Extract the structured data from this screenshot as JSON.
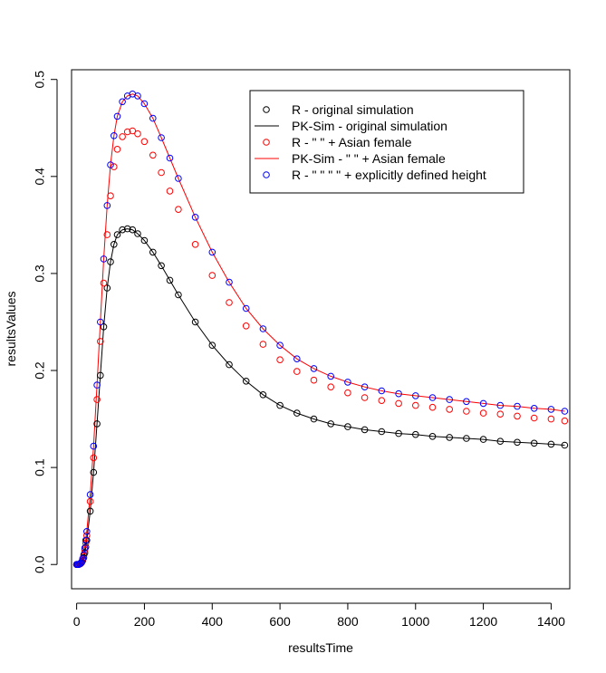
{
  "chart_data": {
    "type": "scatter",
    "title": "",
    "xlabel": "resultsTime",
    "ylabel": "resultsValues",
    "xlim": [
      -15,
      1455
    ],
    "ylim": [
      -0.025,
      0.51
    ],
    "x_ticks": [
      0,
      200,
      400,
      600,
      800,
      1000,
      1200,
      1400
    ],
    "y_ticks": [
      0.0,
      0.1,
      0.2,
      0.3,
      0.4,
      0.5
    ],
    "y_tick_labels": [
      "0.0",
      "0.1",
      "0.2",
      "0.3",
      "0.4",
      "0.5"
    ],
    "grid": false,
    "legend_position": "top-right",
    "legend": [
      {
        "label": "R - original simulation",
        "symbol": "circle",
        "color": "#000000"
      },
      {
        "label": "PK-Sim - original simulation",
        "symbol": "line",
        "color": "#000000"
      },
      {
        "label": "R - \" \" + Asian female",
        "symbol": "circle",
        "color": "#ff0000"
      },
      {
        "label": "PK-Sim - \" \" + Asian female",
        "symbol": "line",
        "color": "#ff0000"
      },
      {
        "label": "R - \" \" \" \" + explicitly defined height",
        "symbol": "circle",
        "color": "#0000ff"
      }
    ],
    "x": [
      0,
      3,
      6,
      9,
      12,
      15,
      18,
      21,
      24,
      27,
      30,
      40,
      50,
      60,
      70,
      80,
      90,
      100,
      110,
      120,
      135,
      150,
      165,
      180,
      200,
      225,
      250,
      275,
      300,
      350,
      400,
      450,
      500,
      550,
      600,
      650,
      700,
      750,
      800,
      850,
      900,
      950,
      1000,
      1050,
      1100,
      1150,
      1200,
      1250,
      1300,
      1350,
      1400,
      1440
    ],
    "series": [
      {
        "name": "R - original simulation",
        "mark": "circle",
        "color": "#000000",
        "values": [
          0.0,
          0.0,
          0.0,
          0.0005,
          0.001,
          0.002,
          0.004,
          0.007,
          0.012,
          0.018,
          0.025,
          0.055,
          0.095,
          0.145,
          0.195,
          0.245,
          0.285,
          0.312,
          0.33,
          0.34,
          0.345,
          0.346,
          0.345,
          0.341,
          0.334,
          0.322,
          0.308,
          0.293,
          0.278,
          0.25,
          0.226,
          0.206,
          0.189,
          0.175,
          0.164,
          0.156,
          0.15,
          0.145,
          0.142,
          0.139,
          0.137,
          0.135,
          0.134,
          0.132,
          0.131,
          0.13,
          0.129,
          0.127,
          0.126,
          0.125,
          0.124,
          0.123
        ]
      },
      {
        "name": "PK-Sim - original simulation",
        "mark": "line",
        "color": "#000000",
        "values": [
          0.0,
          0.0,
          0.0,
          0.0005,
          0.001,
          0.002,
          0.004,
          0.007,
          0.012,
          0.018,
          0.025,
          0.055,
          0.095,
          0.145,
          0.195,
          0.245,
          0.285,
          0.312,
          0.33,
          0.34,
          0.345,
          0.346,
          0.345,
          0.341,
          0.334,
          0.322,
          0.308,
          0.293,
          0.278,
          0.25,
          0.226,
          0.206,
          0.189,
          0.175,
          0.164,
          0.156,
          0.15,
          0.145,
          0.142,
          0.139,
          0.137,
          0.135,
          0.134,
          0.132,
          0.131,
          0.13,
          0.129,
          0.127,
          0.126,
          0.125,
          0.124,
          0.123
        ]
      },
      {
        "name": "R - \" \" + Asian female",
        "mark": "circle",
        "color": "#ff0000",
        "values": [
          0.0,
          0.0,
          0.0,
          0.0006,
          0.0012,
          0.0025,
          0.005,
          0.009,
          0.015,
          0.022,
          0.03,
          0.065,
          0.11,
          0.17,
          0.23,
          0.29,
          0.34,
          0.38,
          0.41,
          0.428,
          0.441,
          0.446,
          0.447,
          0.444,
          0.436,
          0.422,
          0.404,
          0.385,
          0.366,
          0.33,
          0.298,
          0.27,
          0.246,
          0.227,
          0.211,
          0.199,
          0.19,
          0.183,
          0.177,
          0.172,
          0.169,
          0.166,
          0.164,
          0.162,
          0.16,
          0.158,
          0.156,
          0.155,
          0.153,
          0.151,
          0.15,
          0.148
        ]
      },
      {
        "name": "PK-Sim - \" \" + Asian female",
        "mark": "line",
        "color": "#ff0000",
        "values": [
          0.0,
          0.0,
          0.0,
          0.0007,
          0.0014,
          0.003,
          0.006,
          0.01,
          0.017,
          0.025,
          0.034,
          0.072,
          0.122,
          0.185,
          0.25,
          0.315,
          0.37,
          0.412,
          0.442,
          0.462,
          0.477,
          0.483,
          0.485,
          0.483,
          0.475,
          0.46,
          0.44,
          0.419,
          0.398,
          0.358,
          0.322,
          0.291,
          0.264,
          0.243,
          0.226,
          0.212,
          0.202,
          0.194,
          0.188,
          0.183,
          0.179,
          0.176,
          0.174,
          0.172,
          0.17,
          0.168,
          0.166,
          0.164,
          0.163,
          0.161,
          0.16,
          0.158
        ]
      },
      {
        "name": "R - \" \" \" \" + explicitly defined height",
        "mark": "circle",
        "color": "#0000ff",
        "values": [
          0.0,
          0.0,
          0.0,
          0.0007,
          0.0014,
          0.003,
          0.006,
          0.01,
          0.017,
          0.025,
          0.034,
          0.072,
          0.122,
          0.185,
          0.25,
          0.315,
          0.37,
          0.412,
          0.442,
          0.462,
          0.477,
          0.483,
          0.485,
          0.483,
          0.475,
          0.46,
          0.44,
          0.419,
          0.398,
          0.358,
          0.322,
          0.291,
          0.264,
          0.243,
          0.226,
          0.212,
          0.202,
          0.194,
          0.188,
          0.183,
          0.179,
          0.176,
          0.174,
          0.172,
          0.17,
          0.168,
          0.166,
          0.164,
          0.163,
          0.161,
          0.16,
          0.158
        ]
      }
    ]
  }
}
